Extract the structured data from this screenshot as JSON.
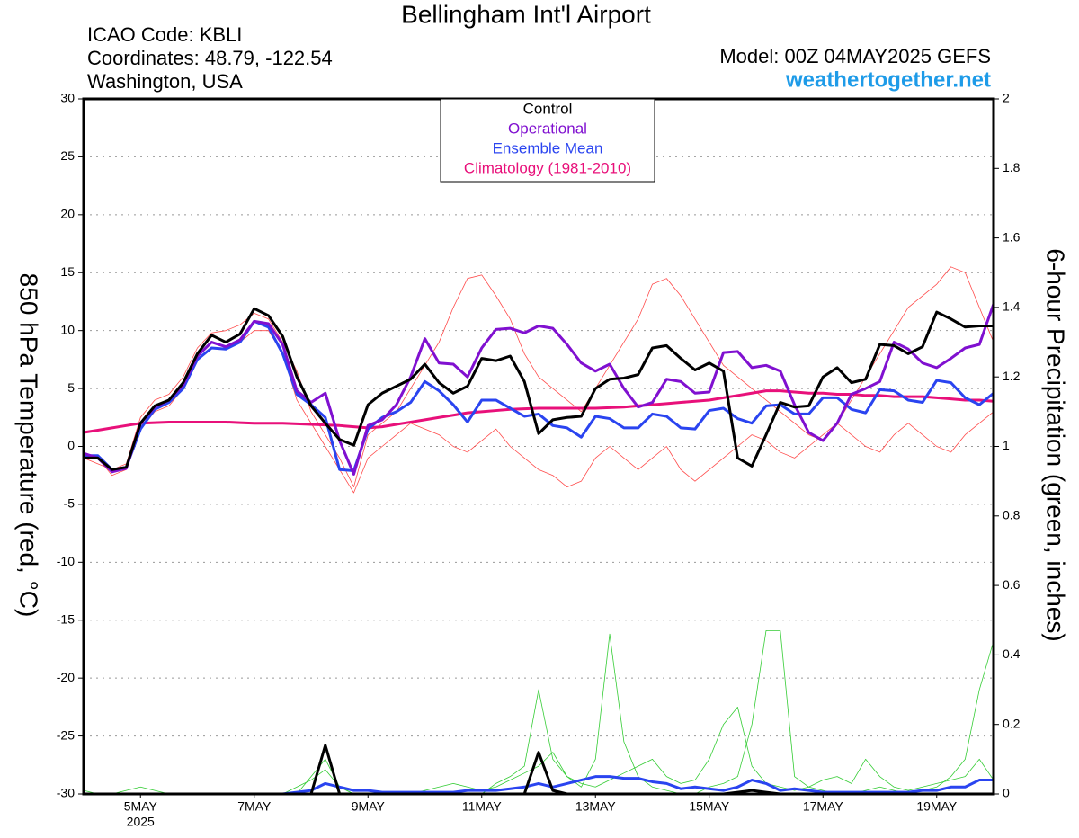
{
  "chart_data": {
    "type": "line",
    "title": "Bellingham Int'l Airport",
    "info_left": [
      "ICAO Code: KBLI",
      "Coordinates: 48.79, -122.54",
      "Washington, USA"
    ],
    "model": "Model: 00Z 04MAY2025 GEFS",
    "site": "weathertogether.net",
    "ylabel": "850 hPa Temperature (red, °C)",
    "y2label": "6-hour Precipitation (green, inches)",
    "xlim": [
      0,
      64
    ],
    "xticks": [
      {
        "value": 4,
        "label": "5MAY"
      },
      {
        "value": 12,
        "label": "7MAY"
      },
      {
        "value": 20,
        "label": "9MAY"
      },
      {
        "value": 28,
        "label": "11MAY"
      },
      {
        "value": 36,
        "label": "13MAY"
      },
      {
        "value": 44,
        "label": "15MAY"
      },
      {
        "value": 52,
        "label": "17MAY"
      },
      {
        "value": 60,
        "label": "19MAY"
      }
    ],
    "year_label": "2025",
    "ylim": [
      -30,
      30
    ],
    "yticks": [
      -30,
      -25,
      -20,
      -15,
      -10,
      -5,
      0,
      5,
      10,
      15,
      20,
      25,
      30
    ],
    "y2lim": [
      0,
      2
    ],
    "y2ticks": [
      0,
      0.2,
      0.4,
      0.6,
      0.8,
      1,
      1.2,
      1.4,
      1.6,
      1.8,
      2
    ],
    "grid": true,
    "legend": "upper center",
    "series": [
      {
        "color": "#ff4a4a",
        "linewidth": 0.8,
        "values": [
          -1,
          -1.5,
          -2,
          -1.5,
          2.5,
          4,
          4.5,
          6,
          8.5,
          9.8,
          10,
          10.5,
          11.5,
          11,
          9,
          6.5,
          3,
          1,
          -1,
          -3.5,
          1,
          2,
          3,
          5,
          7,
          9,
          12,
          14.5,
          14.8,
          13,
          11,
          8,
          6,
          5,
          4,
          3,
          5,
          7,
          9,
          11,
          14,
          14.5,
          13,
          11,
          9,
          7,
          6,
          5,
          4,
          3,
          2,
          1,
          0.5,
          2,
          4,
          6,
          8,
          10,
          12,
          13,
          14,
          15.5,
          15,
          12,
          9
        ]
      },
      {
        "color": "#ff4a4a",
        "linewidth": 0.8,
        "values": [
          -0.5,
          -1,
          -2.5,
          -2,
          1.5,
          3,
          3.5,
          5,
          7.5,
          8.5,
          8.5,
          9,
          10,
          10,
          8,
          4,
          2,
          0,
          -2,
          -4,
          -1,
          0,
          1,
          2,
          1.5,
          1,
          0,
          -0.5,
          0.5,
          1.5,
          0,
          -1,
          -2,
          -2.5,
          -3.5,
          -3,
          -1,
          0,
          -1,
          -2,
          -1,
          0,
          -2,
          -3,
          -2,
          -1,
          0,
          1,
          0.5,
          -0.5,
          -1,
          0,
          1,
          2,
          1,
          0,
          -0.5,
          1,
          2,
          1,
          0,
          -0.5,
          1,
          2,
          3
        ]
      },
      {
        "color": "#33cc33",
        "linewidth": 0.8,
        "axis": "y2",
        "values": [
          0,
          0,
          0,
          0,
          0,
          0,
          0,
          0,
          0,
          0,
          0,
          0,
          0,
          0,
          0,
          0,
          0.05,
          0.1,
          0.02,
          0,
          0,
          0,
          0,
          0,
          0,
          0,
          0,
          0,
          0,
          0.03,
          0.05,
          0.08,
          0.3,
          0.1,
          0.05,
          0.02,
          0.1,
          0.46,
          0.15,
          0.05,
          0.02,
          0.01,
          0,
          0,
          0.02,
          0.03,
          0.05,
          0.2,
          0.47,
          0.47,
          0.05,
          0.02,
          0.01,
          0,
          0,
          0.01,
          0.02,
          0.01,
          0,
          0.01,
          0.02,
          0.05,
          0.1,
          0.3,
          0.44
        ]
      },
      {
        "color": "#33cc33",
        "linewidth": 0.8,
        "axis": "y2",
        "values": [
          0.01,
          0,
          0,
          0.01,
          0.02,
          0.01,
          0,
          0,
          0,
          0,
          0,
          0,
          0,
          0,
          0,
          0.02,
          0.04,
          0.07,
          0.02,
          0,
          0,
          0,
          0,
          0,
          0.01,
          0.02,
          0.03,
          0.02,
          0.01,
          0.02,
          0.04,
          0.06,
          0.08,
          0.12,
          0.05,
          0.03,
          0.02,
          0.04,
          0.06,
          0.08,
          0.1,
          0.05,
          0.03,
          0.04,
          0.1,
          0.2,
          0.25,
          0.08,
          0.03,
          0.02,
          0.01,
          0.02,
          0.04,
          0.05,
          0.03,
          0.1,
          0.05,
          0.02,
          0.01,
          0.02,
          0.03,
          0.04,
          0.05,
          0.1,
          0.04
        ]
      },
      {
        "name": "Climatology (1981-2010)",
        "color": "#e8107a",
        "linewidth": 3,
        "values": [
          1.2,
          1.4,
          1.6,
          1.8,
          2,
          2.05,
          2.1,
          2.1,
          2.1,
          2.1,
          2.1,
          2.05,
          2,
          2,
          2,
          1.95,
          1.9,
          1.85,
          1.8,
          1.7,
          1.6,
          1.7,
          1.9,
          2.1,
          2.3,
          2.5,
          2.7,
          2.9,
          3,
          3.1,
          3.2,
          3.25,
          3.3,
          3.3,
          3.3,
          3.3,
          3.3,
          3.35,
          3.4,
          3.5,
          3.6,
          3.7,
          3.8,
          3.9,
          4,
          4.2,
          4.4,
          4.6,
          4.8,
          4.8,
          4.7,
          4.6,
          4.6,
          4.5,
          4.5,
          4.4,
          4.4,
          4.3,
          4.3,
          4.3,
          4.2,
          4.1,
          4,
          4,
          3.9
        ]
      },
      {
        "name": "Ensemble Mean",
        "color": "#2a44f0",
        "linewidth": 3,
        "values": [
          -0.8,
          -0.8,
          -2,
          -1.8,
          1.5,
          3.2,
          3.8,
          5,
          7.5,
          8.5,
          8.4,
          9,
          10.8,
          10.3,
          8,
          4.5,
          3.6,
          2.5,
          -2,
          -2.1,
          1.5,
          2.5,
          3,
          3.8,
          5.6,
          4.8,
          3.6,
          2.1,
          4,
          4,
          3.3,
          2.6,
          2.8,
          1.8,
          1.6,
          0.8,
          2.6,
          2.4,
          1.6,
          1.6,
          2.8,
          2.6,
          1.6,
          1.5,
          3.1,
          3.3,
          2.4,
          2,
          3.5,
          3.6,
          2.8,
          2.8,
          4.2,
          4.2,
          3.2,
          2.9,
          4.9,
          4.8,
          4,
          3.8,
          5.7,
          5.5,
          4.2,
          3.6,
          4.6
        ]
      },
      {
        "name": "Operational",
        "color": "#8010d0",
        "linewidth": 3,
        "values": [
          -0.6,
          -1,
          -2.2,
          -1.9,
          2,
          3.4,
          4,
          5.3,
          7.8,
          9,
          8.6,
          9.2,
          10.8,
          10.6,
          8.8,
          4.8,
          3.8,
          4.6,
          0.5,
          -2.4,
          1.8,
          2.3,
          3.6,
          6,
          9.3,
          7.2,
          7.1,
          6,
          8.5,
          10.1,
          10.2,
          9.8,
          10.4,
          10.2,
          8.8,
          7.2,
          6.5,
          7.1,
          5,
          3.4,
          3.8,
          5.8,
          5.6,
          4.6,
          4.7,
          8.1,
          8.2,
          6.8,
          7,
          6.5,
          3.6,
          1.2,
          0.5,
          2,
          4.5,
          5,
          5.6,
          9,
          8.4,
          7.2,
          6.8,
          7.6,
          8.5,
          8.8,
          12.3
        ]
      },
      {
        "name": "Control",
        "color": "#000000",
        "linewidth": 3,
        "values": [
          -1,
          -1,
          -2,
          -1.8,
          2,
          3.5,
          4,
          5.5,
          8,
          9.6,
          9,
          9.7,
          11.9,
          11.3,
          9.5,
          6,
          3.5,
          2,
          0.6,
          0.1,
          3.6,
          4.6,
          5.2,
          5.8,
          7.1,
          5.5,
          4.6,
          5.2,
          7.6,
          7.4,
          7.8,
          5.6,
          1.1,
          2.3,
          2.5,
          2.6,
          5,
          5.8,
          5.9,
          6.2,
          8.5,
          8.7,
          7.6,
          6.6,
          7.2,
          6.5,
          -1,
          -1.7,
          1,
          3.8,
          3.4,
          3.5,
          6,
          6.8,
          5.5,
          5.8,
          8.8,
          8.7,
          8,
          8.6,
          11.6,
          11,
          10.3,
          10.4,
          10.4
        ]
      },
      {
        "color": "#2a44f0",
        "linewidth": 3,
        "axis": "y2",
        "values": [
          0,
          0,
          0,
          0,
          0,
          0,
          0,
          0,
          0,
          0,
          0,
          0,
          0,
          0,
          0,
          0.005,
          0.01,
          0.03,
          0.02,
          0.01,
          0.01,
          0.005,
          0.005,
          0.005,
          0.005,
          0.005,
          0.005,
          0.01,
          0.01,
          0.01,
          0.015,
          0.02,
          0.03,
          0.02,
          0.03,
          0.04,
          0.05,
          0.05,
          0.045,
          0.045,
          0.035,
          0.03,
          0.015,
          0.02,
          0.015,
          0.01,
          0.02,
          0.04,
          0.03,
          0.01,
          0.015,
          0.01,
          0.005,
          0.005,
          0.005,
          0.005,
          0.005,
          0.005,
          0.005,
          0.01,
          0.01,
          0.02,
          0.02,
          0.04,
          0.04
        ]
      },
      {
        "color": "#000000",
        "linewidth": 3,
        "axis": "y2",
        "values": [
          0,
          0,
          0,
          0,
          0,
          0,
          0,
          0,
          0,
          0,
          0,
          0,
          0,
          0,
          0,
          0,
          0,
          0.14,
          0,
          0,
          0,
          0,
          0,
          0,
          0,
          0,
          0,
          0,
          0,
          0,
          0,
          0,
          0.12,
          0.01,
          0,
          0,
          0,
          0,
          0,
          0,
          0,
          0,
          0,
          0,
          0,
          0,
          0.005,
          0.01,
          0.005,
          0,
          0,
          0,
          0,
          0,
          0,
          0,
          0,
          0,
          0,
          0,
          0,
          0,
          0,
          0,
          0
        ]
      }
    ]
  }
}
